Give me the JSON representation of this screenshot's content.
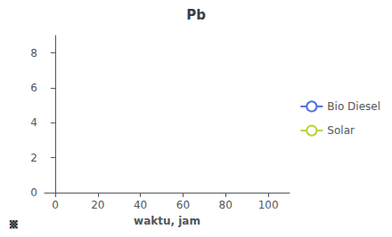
{
  "chart_data": {
    "type": "line",
    "title": "Pb",
    "xlabel": "waktu, jam",
    "annotations": [
      "␧"
    ],
    "x": [],
    "series": [
      {
        "name": "Bio Diesel",
        "values": []
      },
      {
        "name": "Solar",
        "values": []
      }
    ],
    "xlim": [
      -5,
      110
    ],
    "xticks": [
      0,
      20,
      40,
      60,
      80,
      100
    ],
    "ylim": [
      0,
      9
    ],
    "yticks": [
      0,
      2,
      4,
      6,
      8
    ],
    "grid": false,
    "legend": "right"
  }
}
